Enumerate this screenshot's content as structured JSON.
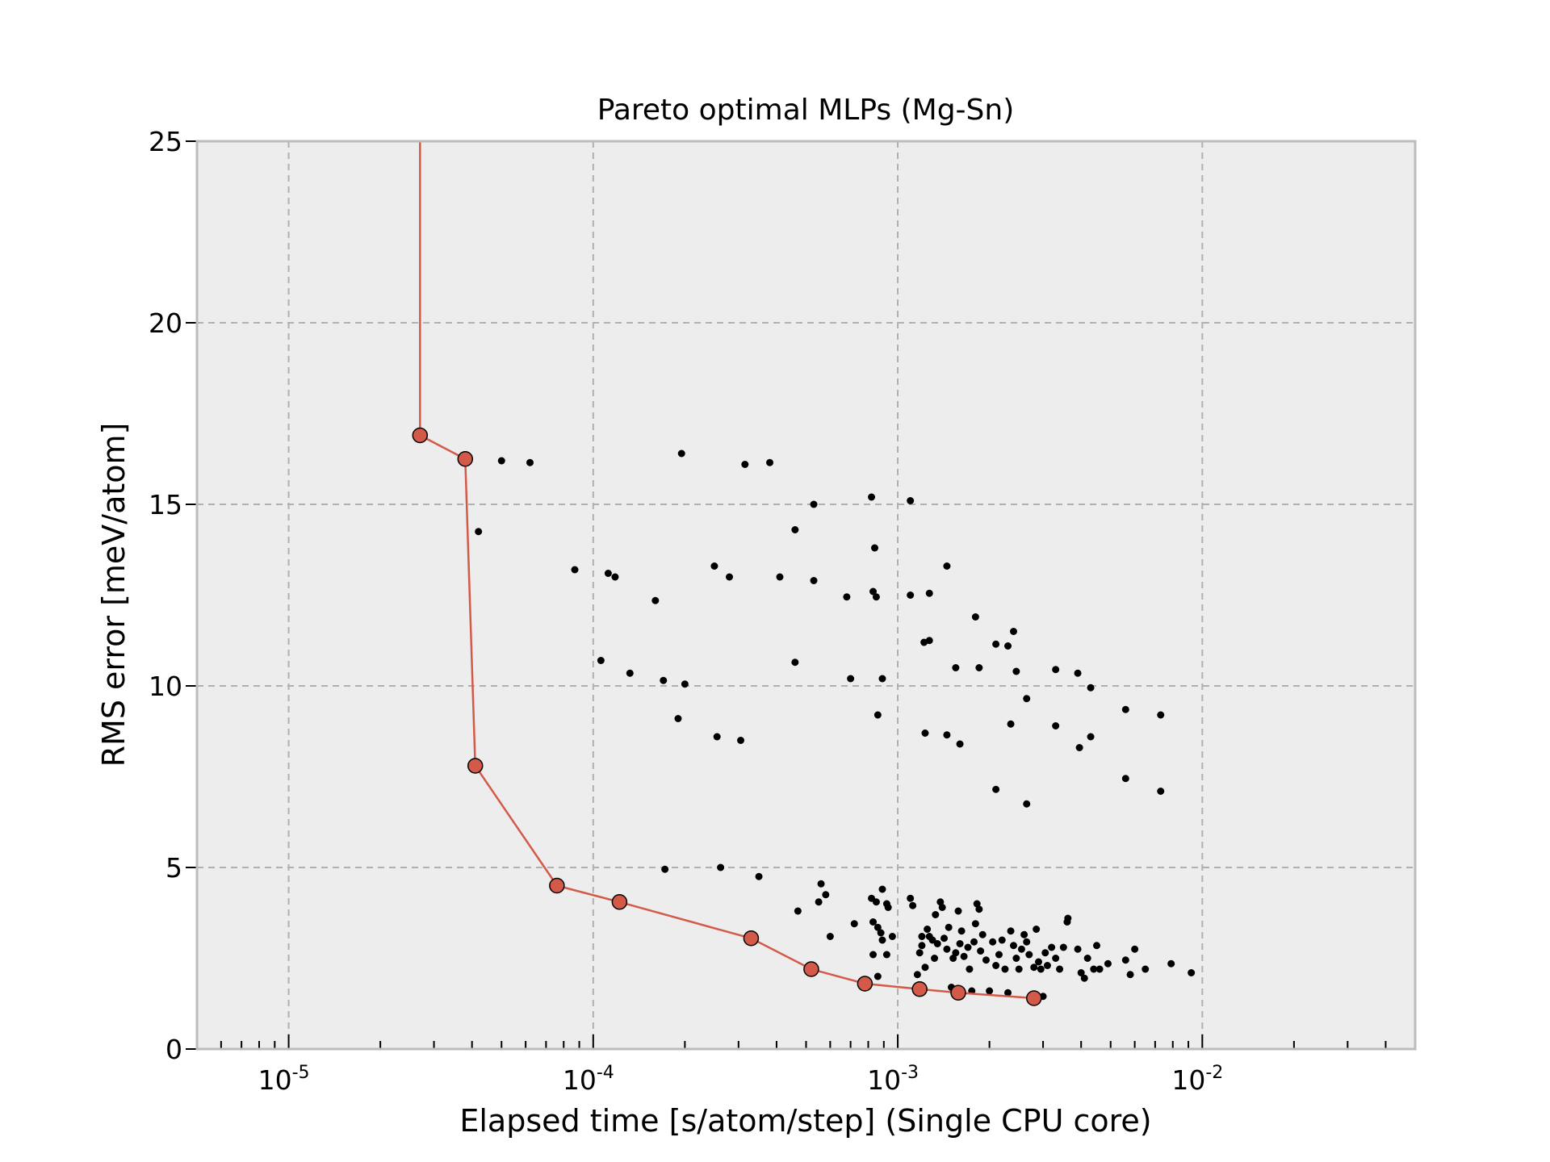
{
  "chart_data": {
    "type": "scatter",
    "title": "Pareto optimal MLPs (Mg-Sn)",
    "xlabel": "Elapsed time [s/atom/step] (Single CPU core)",
    "ylabel": "RMS error [meV/atom]",
    "xscale": "log",
    "xlim": [
      5e-06,
      0.05
    ],
    "ylim": [
      0,
      25
    ],
    "xticks": [
      {
        "base": "10",
        "exp": "-5",
        "value": 1e-05
      },
      {
        "base": "10",
        "exp": "-4",
        "value": 0.0001
      },
      {
        "base": "10",
        "exp": "-3",
        "value": 0.001
      },
      {
        "base": "10",
        "exp": "-2",
        "value": 0.01
      }
    ],
    "yticks": [
      "0",
      "5",
      "10",
      "15",
      "20",
      "25"
    ],
    "grid": true,
    "background": "#ededed",
    "series": [
      {
        "kind": "scatter",
        "color": "#000000",
        "points": [
          [
            5e-05,
            16.2
          ],
          [
            6.2e-05,
            16.15
          ],
          [
            4.2e-05,
            14.25
          ],
          [
            0.000195,
            16.4
          ],
          [
            0.000315,
            16.1
          ],
          [
            0.00038,
            16.15
          ],
          [
            8.7e-05,
            13.2
          ],
          [
            0.000112,
            13.1
          ],
          [
            0.000118,
            13.0
          ],
          [
            0.00016,
            12.35
          ],
          [
            0.00025,
            13.3
          ],
          [
            0.00028,
            13.0
          ],
          [
            0.00041,
            13.0
          ],
          [
            0.00046,
            14.3
          ],
          [
            0.00053,
            15.0
          ],
          [
            0.00053,
            12.9
          ],
          [
            0.00068,
            12.45
          ],
          [
            0.00082,
            15.2
          ],
          [
            0.00084,
            13.8
          ],
          [
            0.00083,
            12.6
          ],
          [
            0.00085,
            12.45
          ],
          [
            0.0011,
            15.1
          ],
          [
            0.0011,
            12.5
          ],
          [
            0.00127,
            12.55
          ],
          [
            0.00145,
            13.3
          ],
          [
            0.00122,
            11.2
          ],
          [
            0.00127,
            11.25
          ],
          [
            0.0018,
            11.9
          ],
          [
            0.0021,
            11.15
          ],
          [
            0.0023,
            11.1
          ],
          [
            0.0024,
            11.5
          ],
          [
            0.000106,
            10.7
          ],
          [
            0.000132,
            10.35
          ],
          [
            0.00017,
            10.15
          ],
          [
            0.0002,
            10.05
          ],
          [
            0.00046,
            10.65
          ],
          [
            0.0007,
            10.2
          ],
          [
            0.00089,
            10.2
          ],
          [
            0.00155,
            10.5
          ],
          [
            0.00185,
            10.5
          ],
          [
            0.00245,
            10.4
          ],
          [
            0.0033,
            10.45
          ],
          [
            0.0039,
            10.35
          ],
          [
            0.0043,
            9.95
          ],
          [
            0.00265,
            9.65
          ],
          [
            0.00019,
            9.1
          ],
          [
            0.000255,
            8.6
          ],
          [
            0.000305,
            8.5
          ],
          [
            0.00086,
            9.2
          ],
          [
            0.00123,
            8.7
          ],
          [
            0.00145,
            8.65
          ],
          [
            0.0016,
            8.4
          ],
          [
            0.00235,
            8.95
          ],
          [
            0.0033,
            8.9
          ],
          [
            0.00395,
            8.3
          ],
          [
            0.0043,
            8.6
          ],
          [
            0.0056,
            9.35
          ],
          [
            0.0073,
            9.2
          ],
          [
            0.0021,
            7.15
          ],
          [
            0.00265,
            6.75
          ],
          [
            0.0056,
            7.45
          ],
          [
            0.0073,
            7.1
          ],
          [
            0.000172,
            4.95
          ],
          [
            0.000262,
            5.0
          ],
          [
            0.00035,
            4.75
          ],
          [
            0.00047,
            3.8
          ],
          [
            0.00055,
            4.05
          ],
          [
            0.00056,
            4.55
          ],
          [
            0.00058,
            4.25
          ],
          [
            0.0006,
            3.1
          ],
          [
            0.00072,
            3.45
          ],
          [
            0.00082,
            4.15
          ],
          [
            0.00083,
            3.5
          ],
          [
            0.00085,
            4.05
          ],
          [
            0.00086,
            3.35
          ],
          [
            0.00088,
            3.2
          ],
          [
            0.00089,
            4.4
          ],
          [
            0.00092,
            4.0
          ],
          [
            0.00093,
            3.9
          ],
          [
            0.00096,
            3.1
          ],
          [
            0.00083,
            2.6
          ],
          [
            0.00086,
            2.0
          ],
          [
            0.00089,
            3.0
          ],
          [
            0.00092,
            2.6
          ],
          [
            0.0011,
            4.15
          ],
          [
            0.00112,
            3.95
          ],
          [
            0.00116,
            2.05
          ],
          [
            0.00118,
            2.65
          ],
          [
            0.0012,
            3.1
          ],
          [
            0.0012,
            2.85
          ],
          [
            0.00123,
            2.25
          ],
          [
            0.00125,
            3.3
          ],
          [
            0.00127,
            3.1
          ],
          [
            0.0013,
            3.0
          ],
          [
            0.00132,
            2.5
          ],
          [
            0.00133,
            3.7
          ],
          [
            0.00135,
            2.9
          ],
          [
            0.00138,
            4.05
          ],
          [
            0.0014,
            3.9
          ],
          [
            0.00142,
            3.05
          ],
          [
            0.00145,
            2.75
          ],
          [
            0.00147,
            3.35
          ],
          [
            0.0015,
            1.7
          ],
          [
            0.00152,
            2.5
          ],
          [
            0.00155,
            2.65
          ],
          [
            0.00158,
            3.8
          ],
          [
            0.0016,
            2.9
          ],
          [
            0.00162,
            3.25
          ],
          [
            0.00165,
            2.55
          ],
          [
            0.0017,
            2.8
          ],
          [
            0.00172,
            2.2
          ],
          [
            0.00175,
            1.6
          ],
          [
            0.00178,
            2.95
          ],
          [
            0.0018,
            3.45
          ],
          [
            0.00182,
            4.0
          ],
          [
            0.00185,
            3.85
          ],
          [
            0.00187,
            2.7
          ],
          [
            0.0019,
            3.15
          ],
          [
            0.00195,
            2.45
          ],
          [
            0.002,
            1.6
          ],
          [
            0.00205,
            2.95
          ],
          [
            0.0021,
            2.3
          ],
          [
            0.00215,
            2.6
          ],
          [
            0.0022,
            3.0
          ],
          [
            0.00225,
            2.2
          ],
          [
            0.0023,
            1.55
          ],
          [
            0.00235,
            3.25
          ],
          [
            0.0024,
            2.85
          ],
          [
            0.00245,
            2.5
          ],
          [
            0.0025,
            2.2
          ],
          [
            0.00255,
            2.75
          ],
          [
            0.0026,
            3.15
          ],
          [
            0.00265,
            2.95
          ],
          [
            0.0027,
            2.6
          ],
          [
            0.0028,
            2.25
          ],
          [
            0.00285,
            3.3
          ],
          [
            0.0029,
            2.4
          ],
          [
            0.00295,
            2.2
          ],
          [
            0.003,
            1.45
          ],
          [
            0.00305,
            2.65
          ],
          [
            0.0031,
            2.3
          ],
          [
            0.0032,
            2.8
          ],
          [
            0.0033,
            2.5
          ],
          [
            0.0034,
            2.2
          ],
          [
            0.0035,
            2.8
          ],
          [
            0.0036,
            3.5
          ],
          [
            0.00362,
            3.6
          ],
          [
            0.0039,
            2.75
          ],
          [
            0.004,
            2.1
          ],
          [
            0.0041,
            1.95
          ],
          [
            0.0042,
            2.5
          ],
          [
            0.0044,
            2.2
          ],
          [
            0.0045,
            2.85
          ],
          [
            0.0046,
            2.2
          ],
          [
            0.0049,
            2.35
          ],
          [
            0.0056,
            2.45
          ],
          [
            0.0058,
            2.05
          ],
          [
            0.006,
            2.75
          ],
          [
            0.0065,
            2.2
          ],
          [
            0.0079,
            2.35
          ],
          [
            0.0092,
            2.1
          ]
        ]
      },
      {
        "kind": "pareto-line",
        "color": "#d35a49",
        "tail_points": [
          [
            2.7e-05,
            25
          ],
          [
            2.7e-05,
            16.9
          ]
        ],
        "points": [
          [
            2.7e-05,
            16.9
          ],
          [
            3.8e-05,
            16.25
          ],
          [
            4.1e-05,
            7.8
          ],
          [
            7.6e-05,
            4.5
          ],
          [
            0.000122,
            4.05
          ],
          [
            0.00033,
            3.05
          ],
          [
            0.00052,
            2.2
          ],
          [
            0.00078,
            1.8
          ],
          [
            0.00118,
            1.65
          ],
          [
            0.00158,
            1.55
          ],
          [
            0.0028,
            1.4
          ]
        ]
      }
    ]
  }
}
